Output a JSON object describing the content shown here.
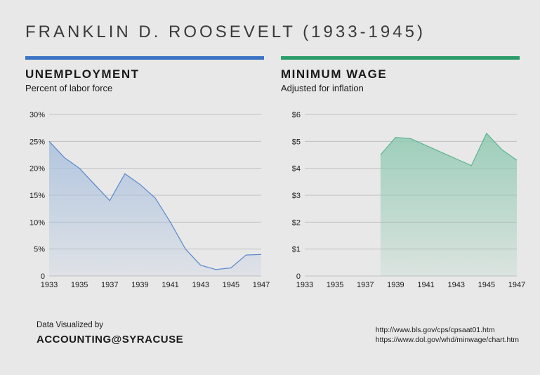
{
  "title": "FRANKLIN D. ROOSEVELT (1933-1945)",
  "background_color": "#e8e8e8",
  "charts": {
    "unemployment": {
      "type": "area",
      "title": "UNEMPLOYMENT",
      "subtitle": "Percent of labor force",
      "accent_color": "#3b73c5",
      "fill_color": "#a9c0de",
      "fill_opacity": 0.85,
      "line_color": "#5a87cc",
      "line_width": 1.2,
      "x": [
        1933,
        1934,
        1935,
        1936,
        1937,
        1938,
        1939,
        1940,
        1941,
        1942,
        1943,
        1944,
        1945,
        1946,
        1947
      ],
      "y": [
        25,
        22,
        20,
        17,
        14,
        19,
        17,
        14.5,
        10,
        5,
        2,
        1.2,
        1.5,
        3.9,
        4
      ],
      "xlim": [
        1933,
        1947
      ],
      "ylim": [
        0,
        30
      ],
      "ytick_step": 5,
      "xtick_step": 2,
      "y_suffix": "%",
      "y_prefix": "",
      "grid_color": "#bfbfbf",
      "label_fontsize": 11
    },
    "minwage": {
      "type": "area",
      "title": "MINIMUM WAGE",
      "subtitle": "Adjusted for inflation",
      "accent_color": "#2a9d6b",
      "fill_color": "#8fc9b1",
      "fill_opacity": 0.85,
      "line_color": "#5fb393",
      "line_width": 1.2,
      "x": [
        1938,
        1939,
        1940,
        1941,
        1942,
        1943,
        1944,
        1945,
        1946,
        1947
      ],
      "y": [
        4.5,
        5.15,
        5.1,
        4.85,
        4.6,
        4.35,
        4.1,
        5.3,
        4.7,
        4.3
      ],
      "xlim": [
        1933,
        1947
      ],
      "ylim": [
        0,
        6
      ],
      "ytick_step": 1,
      "xtick_step": 2,
      "y_suffix": "",
      "y_prefix": "$",
      "grid_color": "#bfbfbf",
      "label_fontsize": 11
    }
  },
  "credit": {
    "top": "Data Visualized by",
    "brand": "ACCOUNTING@SYRACUSE"
  },
  "sources": [
    "http://www.bls.gov/cps/cpsaat01.htm",
    "https://www.dol.gov/whd/minwage/chart.htm"
  ]
}
